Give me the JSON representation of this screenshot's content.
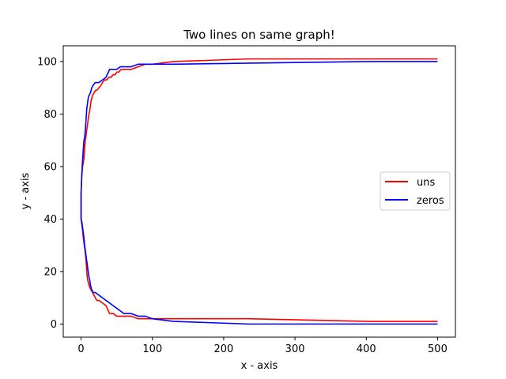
{
  "chart_data": {
    "type": "line",
    "title": "Two lines on same graph!",
    "xlabel": "x - axis",
    "ylabel": "y - axis",
    "xlim": [
      -25,
      525
    ],
    "ylim": [
      -5,
      106
    ],
    "xticks": [
      0,
      100,
      200,
      300,
      400,
      500
    ],
    "yticks": [
      0,
      20,
      40,
      60,
      80,
      100
    ],
    "legend_position": "center-right",
    "grid": false,
    "series": [
      {
        "name": "uns",
        "color": "#ff0000",
        "branches": [
          {
            "x": [
              0,
              0,
              1,
              2,
              3,
              4,
              5,
              6,
              7,
              8,
              9,
              10,
              11,
              12,
              13,
              14,
              15,
              16,
              18,
              20,
              22,
              25,
              28,
              30,
              33,
              36,
              39,
              42,
              45,
              48,
              50,
              53,
              56,
              60,
              65,
              70,
              80,
              90,
              100,
              130,
              235,
              500
            ],
            "y": [
              45,
              50,
              56,
              60,
              61,
              63,
              67,
              70,
              72,
              74,
              76,
              78,
              80,
              81,
              83,
              85,
              86,
              87,
              88,
              89,
              89,
              90,
              91,
              92,
              93,
              93,
              94,
              94,
              95,
              95,
              96,
              96,
              97,
              97,
              97,
              97,
              98,
              99,
              99,
              100,
              101,
              101
            ]
          },
          {
            "x": [
              0,
              0,
              1,
              2,
              3,
              4,
              5,
              6,
              7,
              8,
              9,
              10,
              11,
              12,
              14,
              16,
              18,
              20,
              22,
              25,
              30,
              35,
              40,
              45,
              50,
              55,
              60,
              70,
              80,
              100,
              130,
              235,
              405,
              500
            ],
            "y": [
              45,
              40,
              38,
              36,
              33,
              31,
              29,
              27,
              24,
              20,
              17,
              16,
              15,
              14,
              13,
              12,
              11,
              10,
              9,
              9,
              8,
              7,
              4,
              4,
              3,
              3,
              3,
              3,
              2,
              2,
              2,
              2,
              1,
              1
            ]
          }
        ]
      },
      {
        "name": "zeros",
        "color": "#0000ff",
        "branches": [
          {
            "x": [
              0,
              0,
              1,
              2,
              3,
              4,
              5,
              6,
              7,
              8,
              9,
              10,
              11,
              13,
              15,
              17,
              20,
              25,
              30,
              35,
              40,
              45,
              50,
              55,
              60,
              70,
              80,
              100,
              130,
              405,
              500
            ],
            "y": [
              42,
              50,
              57,
              62,
              66,
              70,
              71,
              74,
              78,
              82,
              84,
              86,
              87,
              88,
              90,
              91,
              92,
              92,
              93,
              94,
              97,
              97,
              97,
              98,
              98,
              98,
              99,
              99,
              99,
              100,
              100
            ]
          },
          {
            "x": [
              0,
              0,
              1,
              2,
              3,
              4,
              5,
              6,
              7,
              8,
              9,
              10,
              11,
              12,
              13,
              14,
              15,
              17,
              20,
              25,
              30,
              35,
              40,
              45,
              50,
              55,
              60,
              70,
              80,
              90,
              100,
              130,
              235,
              500
            ],
            "y": [
              42,
              40,
              39,
              37,
              35,
              33,
              30,
              28,
              26,
              24,
              22,
              20,
              18,
              17,
              15,
              14,
              13,
              12,
              12,
              11,
              10,
              9,
              8,
              7,
              6,
              5,
              4,
              4,
              3,
              3,
              2,
              1,
              0,
              0
            ]
          }
        ]
      }
    ]
  }
}
